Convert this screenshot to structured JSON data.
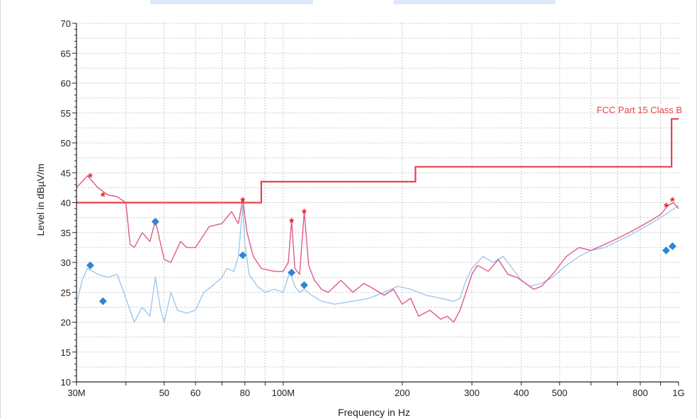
{
  "window": {
    "tabs": [
      "",
      ""
    ]
  },
  "chart_data": {
    "type": "line",
    "title": "",
    "xlabel": "Frequency in Hz",
    "ylabel": "Level in dBµV/m",
    "x_scale": "log",
    "xlim": [
      30000000,
      1000000000
    ],
    "ylim": [
      10,
      70
    ],
    "grid": true,
    "y_ticks": [
      10,
      15,
      20,
      25,
      30,
      35,
      40,
      45,
      50,
      55,
      60,
      65,
      70
    ],
    "x_ticks": [
      {
        "value": 30000000,
        "label": "30M"
      },
      {
        "value": 50000000,
        "label": "50"
      },
      {
        "value": 60000000,
        "label": "60"
      },
      {
        "value": 80000000,
        "label": "80"
      },
      {
        "value": 100000000,
        "label": "100M"
      },
      {
        "value": 200000000,
        "label": "200"
      },
      {
        "value": 300000000,
        "label": "300"
      },
      {
        "value": 400000000,
        "label": "400"
      },
      {
        "value": 500000000,
        "label": "500"
      },
      {
        "value": 800000000,
        "label": "800"
      },
      {
        "value": 1000000000,
        "label": "1G"
      }
    ],
    "limit": {
      "name": "FCC Part 15 Class B",
      "color": "#e8424a",
      "steps": [
        [
          30000000,
          40
        ],
        [
          88000000,
          40
        ],
        [
          88000000,
          43.5
        ],
        [
          216000000,
          43.5
        ],
        [
          216000000,
          46
        ],
        [
          960000000,
          46
        ],
        [
          960000000,
          54
        ],
        [
          1000000000,
          54
        ]
      ]
    },
    "series": [
      {
        "color": "#e05a86",
        "points": [
          [
            30000000,
            42.5
          ],
          [
            32000000,
            44.5
          ],
          [
            34000000,
            42.5
          ],
          [
            36000000,
            41.3
          ],
          [
            38000000,
            41
          ],
          [
            40000000,
            40
          ],
          [
            41000000,
            33
          ],
          [
            42000000,
            32.5
          ],
          [
            44000000,
            35
          ],
          [
            46000000,
            33.5
          ],
          [
            47500000,
            37
          ],
          [
            49000000,
            33
          ],
          [
            50000000,
            30.5
          ],
          [
            52000000,
            30
          ],
          [
            55000000,
            33.5
          ],
          [
            57000000,
            32.5
          ],
          [
            60000000,
            32.5
          ],
          [
            65000000,
            36
          ],
          [
            70000000,
            36.5
          ],
          [
            74000000,
            38.5
          ],
          [
            77000000,
            36.5
          ],
          [
            79000000,
            40.5
          ],
          [
            81000000,
            35
          ],
          [
            84000000,
            31
          ],
          [
            88000000,
            29
          ],
          [
            95000000,
            28.5
          ],
          [
            100000000,
            28.5
          ],
          [
            103000000,
            30
          ],
          [
            105000000,
            37
          ],
          [
            107000000,
            29
          ],
          [
            110000000,
            28
          ],
          [
            113000000,
            38.5
          ],
          [
            116000000,
            29.5
          ],
          [
            120000000,
            27
          ],
          [
            125000000,
            25.5
          ],
          [
            130000000,
            25
          ],
          [
            140000000,
            27
          ],
          [
            150000000,
            25
          ],
          [
            160000000,
            26.5
          ],
          [
            170000000,
            25.5
          ],
          [
            180000000,
            24.5
          ],
          [
            190000000,
            25.5
          ],
          [
            200000000,
            23
          ],
          [
            210000000,
            24
          ],
          [
            220000000,
            21
          ],
          [
            235000000,
            22
          ],
          [
            250000000,
            20.5
          ],
          [
            260000000,
            21
          ],
          [
            270000000,
            20
          ],
          [
            280000000,
            22
          ],
          [
            290000000,
            25
          ],
          [
            300000000,
            28
          ],
          [
            310000000,
            29.5
          ],
          [
            330000000,
            28.5
          ],
          [
            350000000,
            30.5
          ],
          [
            370000000,
            28
          ],
          [
            390000000,
            27.5
          ],
          [
            410000000,
            26.5
          ],
          [
            430000000,
            25.5
          ],
          [
            450000000,
            26
          ],
          [
            480000000,
            28
          ],
          [
            520000000,
            31
          ],
          [
            560000000,
            32.5
          ],
          [
            600000000,
            32
          ],
          [
            650000000,
            33
          ],
          [
            700000000,
            34
          ],
          [
            750000000,
            35
          ],
          [
            800000000,
            36
          ],
          [
            850000000,
            37
          ],
          [
            900000000,
            38
          ],
          [
            940000000,
            39.5
          ],
          [
            970000000,
            40
          ],
          [
            1000000000,
            39
          ]
        ]
      },
      {
        "color": "#9ec8ee",
        "points": [
          [
            30000000,
            23
          ],
          [
            31000000,
            27
          ],
          [
            32000000,
            29
          ],
          [
            33000000,
            28.5
          ],
          [
            34000000,
            28
          ],
          [
            36000000,
            27.5
          ],
          [
            38000000,
            28
          ],
          [
            39000000,
            26
          ],
          [
            40000000,
            24
          ],
          [
            42000000,
            20
          ],
          [
            44000000,
            22.5
          ],
          [
            46000000,
            21
          ],
          [
            47500000,
            27.5
          ],
          [
            49000000,
            22
          ],
          [
            50000000,
            20
          ],
          [
            52000000,
            25
          ],
          [
            54000000,
            22
          ],
          [
            57000000,
            21.5
          ],
          [
            60000000,
            22
          ],
          [
            63000000,
            25
          ],
          [
            66000000,
            26
          ],
          [
            70000000,
            27.5
          ],
          [
            72000000,
            29
          ],
          [
            75000000,
            28.5
          ],
          [
            77000000,
            31
          ],
          [
            79000000,
            39.5
          ],
          [
            80000000,
            33
          ],
          [
            82000000,
            28
          ],
          [
            86000000,
            26
          ],
          [
            90000000,
            25
          ],
          [
            95000000,
            25.5
          ],
          [
            100000000,
            25
          ],
          [
            104000000,
            28.5
          ],
          [
            107000000,
            26
          ],
          [
            110000000,
            25
          ],
          [
            113000000,
            25.5
          ],
          [
            118000000,
            24.5
          ],
          [
            125000000,
            23.5
          ],
          [
            135000000,
            23
          ],
          [
            150000000,
            23.5
          ],
          [
            165000000,
            24
          ],
          [
            180000000,
            25
          ],
          [
            195000000,
            26
          ],
          [
            210000000,
            25.5
          ],
          [
            230000000,
            24.5
          ],
          [
            250000000,
            24
          ],
          [
            270000000,
            23.5
          ],
          [
            280000000,
            24
          ],
          [
            290000000,
            27
          ],
          [
            300000000,
            29
          ],
          [
            320000000,
            31
          ],
          [
            340000000,
            30
          ],
          [
            360000000,
            31
          ],
          [
            380000000,
            29
          ],
          [
            400000000,
            27
          ],
          [
            420000000,
            26
          ],
          [
            450000000,
            26.5
          ],
          [
            480000000,
            27.5
          ],
          [
            520000000,
            29.5
          ],
          [
            560000000,
            31
          ],
          [
            600000000,
            32
          ],
          [
            650000000,
            32.5
          ],
          [
            700000000,
            33.5
          ],
          [
            750000000,
            34.5
          ],
          [
            800000000,
            35.5
          ],
          [
            850000000,
            36.5
          ],
          [
            900000000,
            37.5
          ],
          [
            950000000,
            38.5
          ],
          [
            1000000000,
            39.5
          ]
        ]
      }
    ],
    "peak_markers": {
      "color": "#e02020",
      "points": [
        [
          32500000,
          44.5
        ],
        [
          35000000,
          41.3
        ],
        [
          47500000,
          37
        ],
        [
          79000000,
          40.5
        ],
        [
          105000000,
          37
        ],
        [
          113000000,
          38.5
        ],
        [
          930000000,
          39.5
        ],
        [
          965000000,
          40.5
        ]
      ]
    },
    "qp_markers": {
      "color": "#2f86d6",
      "points": [
        [
          32500000,
          29.5
        ],
        [
          35000000,
          23.5
        ],
        [
          47500000,
          36.8
        ],
        [
          79000000,
          31.2
        ],
        [
          105000000,
          28.3
        ],
        [
          113000000,
          26.2
        ],
        [
          930000000,
          32
        ],
        [
          965000000,
          32.7
        ]
      ]
    }
  }
}
